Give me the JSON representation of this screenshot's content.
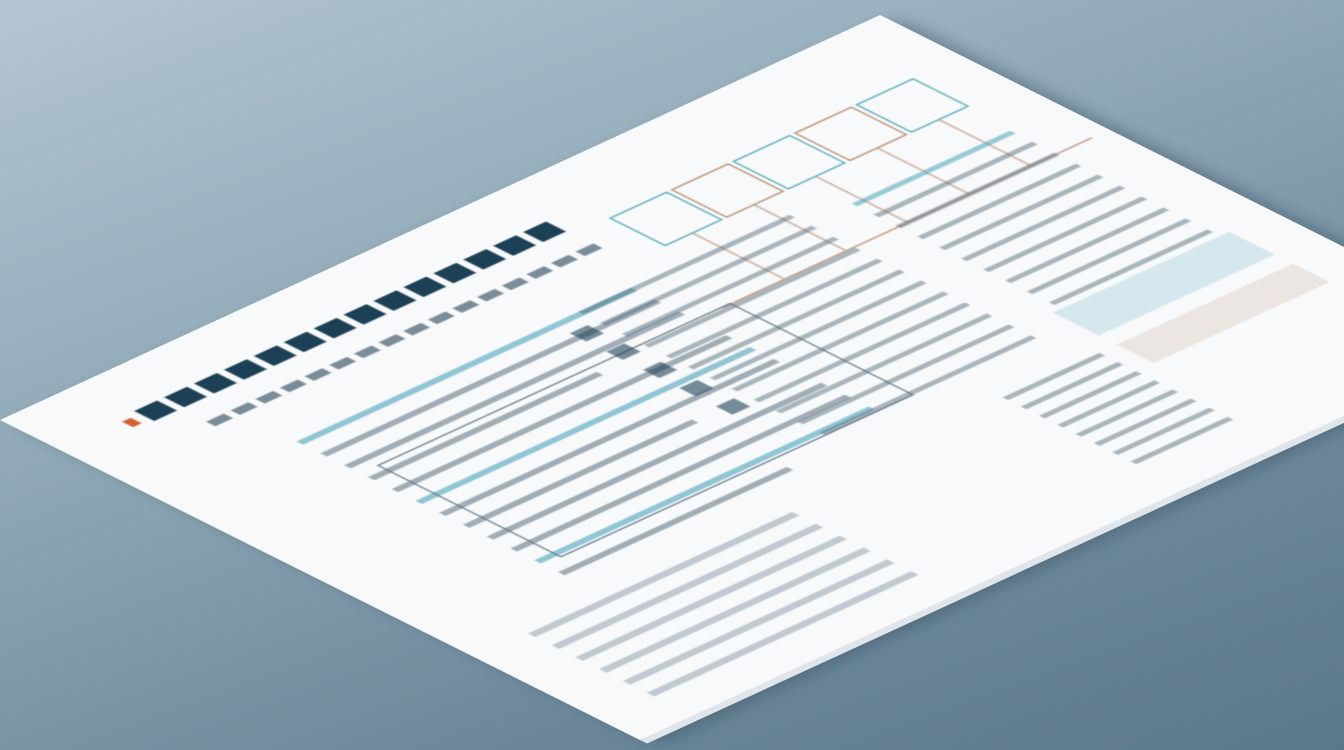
{
  "scene": {
    "subject": "document-sheet",
    "colors": {
      "background": "#7f99aa",
      "paper": "#f7f9fa",
      "title_text": "#1f3f55",
      "accent_teal": "#3a9bb5",
      "accent_brown": "#b07a55",
      "accent_orange": "#d2632e",
      "body_text": "#5a6f80"
    }
  }
}
